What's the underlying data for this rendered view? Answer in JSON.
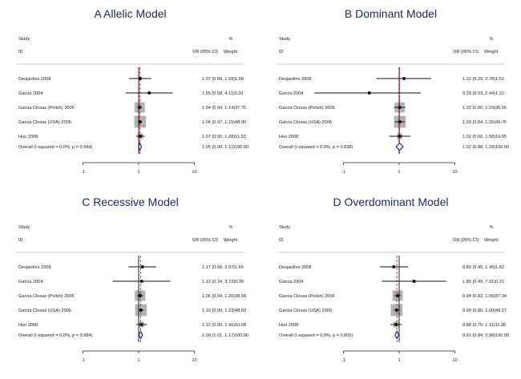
{
  "chart_data": [
    {
      "type": "forest",
      "title": "A  Allelic Model",
      "header": {
        "study": "Study",
        "id": "ID",
        "or": "OR (95% CI)",
        "pct": "%",
        "weight": "Weight"
      },
      "x_ticks": [
        ".1",
        "1",
        "10"
      ],
      "x_scale": "log",
      "studies": [
        {
          "name": "Desjardins 2008",
          "or": 1.07,
          "lo": 0.68,
          "hi": 1.69,
          "weight": 1.68,
          "text": "1.07 (0.68, 1.69)1.68"
        },
        {
          "name": "Garcia 2004",
          "or": 1.55,
          "lo": 0.58,
          "hi": 4.11,
          "weight": 0.33,
          "text": "1.55 (0.58, 4.11)0.33"
        },
        {
          "name": "Garcia Closas (Polish) 2006",
          "or": 1.04,
          "lo": 0.94,
          "hi": 1.14,
          "weight": 37.75,
          "text": "1.04 (0.94, 1.14)37.75"
        },
        {
          "name": "Garcia Closas (USA) 2006",
          "or": 1.06,
          "lo": 0.97,
          "hi": 1.15,
          "weight": 48.9,
          "text": "1.06 (0.97, 1.15)48.90"
        },
        {
          "name": "Huo 2008",
          "or": 1.07,
          "lo": 0.9,
          "hi": 1.28,
          "weight": 11.33,
          "text": "1.07 (0.90, 1.28)11.33"
        }
      ],
      "overall": {
        "name": "Overall  (I-squared = 0.0%, p = 0.944)",
        "or": 1.05,
        "lo": 0.99,
        "hi": 1.12,
        "text": "1.05 (0.99, 1.12)100.00"
      }
    },
    {
      "type": "forest",
      "title": "B  Dominant Model",
      "header": {
        "study": "Study",
        "id": "ID",
        "or": "OR (95% CI)",
        "pct": "%",
        "weight": "Weight"
      },
      "x_ticks": [
        ".1",
        "1",
        "10"
      ],
      "x_scale": "log",
      "studies": [
        {
          "name": "Desjardins 2008",
          "or": 1.22,
          "lo": 0.39,
          "hi": 3.78,
          "weight": 1.51,
          "text": "1.22 (0.39, 3.78)1.51"
        },
        {
          "name": "Garcia 2004",
          "or": 0.29,
          "lo": 0.03,
          "hi": 2.44,
          "weight": 1.22,
          "text": "0.29 (0.03, 2.44)1.22"
        },
        {
          "name": "Garcia Closas (Polish) 2006",
          "or": 1.02,
          "lo": 0.8,
          "hi": 1.29,
          "weight": 36.56,
          "text": "1.02 (0.80, 1.29)36.56"
        },
        {
          "name": "Garcia Closas (USA) 2006",
          "or": 1.03,
          "lo": 0.84,
          "hi": 1.26,
          "weight": 49.76,
          "text": "1.03 (0.84, 1.26)49.76"
        },
        {
          "name": "Huo 2008",
          "or": 1.02,
          "lo": 0.66,
          "hi": 1.58,
          "weight": 10.95,
          "text": "1.02 (0.66, 1.58)10.95"
        }
      ],
      "overall": {
        "name": "Overall  (I-squared = 0.0%, p = 0.838)",
        "or": 1.02,
        "lo": 0.88,
        "hi": 1.18,
        "text": "1.02 (0.88, 1.18)100.00"
      }
    },
    {
      "type": "forest",
      "title": "C  Recessive Model",
      "header": {
        "study": "Study",
        "id": "ID",
        "or": "OR (95% CI)",
        "pct": "%",
        "weight": "Weight"
      },
      "x_ticks": [
        ".1",
        "1",
        "10"
      ],
      "x_scale": "log",
      "studies": [
        {
          "name": "Desjardins 2008",
          "or": 1.17,
          "lo": 0.66,
          "hi": 2.07,
          "weight": 1.66,
          "text": "1.17 (0.66, 2.07)1.66"
        },
        {
          "name": "Garcia 2004",
          "or": 1.13,
          "lo": 0.34,
          "hi": 3.72,
          "weight": 0.39,
          "text": "1.13 (0.34, 3.72)0.39"
        },
        {
          "name": "Garcia Closas (Polish) 2006",
          "or": 1.06,
          "lo": 0.94,
          "hi": 1.2,
          "weight": 38.58,
          "text": "1.06 (0.94, 1.20)38.58"
        },
        {
          "name": "Garcia Closas (USA) 2006",
          "or": 1.1,
          "lo": 0.99,
          "hi": 1.23,
          "weight": 48.69,
          "text": "1.10 (0.99, 1.23)48.69"
        },
        {
          "name": "Huo 2008",
          "or": 1.12,
          "lo": 0.9,
          "hi": 1.41,
          "weight": 10.68,
          "text": "1.12 (0.90, 1.41)10.68"
        }
      ],
      "overall": {
        "name": "Overall  (I-squared = 0.0%, p = 0.984)",
        "or": 1.09,
        "lo": 1.01,
        "hi": 1.17,
        "text": "1.09 (1.01, 1.17)100.00"
      }
    },
    {
      "type": "forest",
      "title": "D  Overdominant Model",
      "header": {
        "study": "Study",
        "id": "ID",
        "or": "OR (95% CI)",
        "pct": "%",
        "weight": "Weight"
      },
      "x_ticks": [
        ".1",
        "1",
        "10"
      ],
      "x_scale": "log",
      "studies": [
        {
          "name": "Desjardins 2008",
          "or": 0.8,
          "lo": 0.45,
          "hi": 1.45,
          "weight": 1.82,
          "text": "0.80 (0.45, 1.45)1.82"
        },
        {
          "name": "Garcia 2004",
          "or": 1.85,
          "lo": 0.49,
          "hi": 7.01,
          "weight": 0.21,
          "text": "1.85 (0.49, 7.01)0.21"
        },
        {
          "name": "Garcia Closas (Polish) 2006",
          "or": 0.94,
          "lo": 0.83,
          "hi": 1.06,
          "weight": 37.34,
          "text": "0.94 (0.83, 1.06)37.34"
        },
        {
          "name": "Garcia Closas (USA) 2006",
          "or": 0.9,
          "lo": 0.8,
          "hi": 1.0,
          "weight": 49.27,
          "text": "0.90 (0.80, 1.00)49.27"
        },
        {
          "name": "Huo 2008",
          "or": 0.88,
          "lo": 0.7,
          "hi": 1.11,
          "weight": 11.36,
          "text": "0.88 (0.70, 1.11)11.36"
        }
      ],
      "overall": {
        "name": "Overall  (I-squared = 0.0%, p = 0.805)",
        "or": 0.91,
        "lo": 0.84,
        "hi": 0.98,
        "text": "0.91 (0.84, 0.98)100.00"
      }
    }
  ]
}
